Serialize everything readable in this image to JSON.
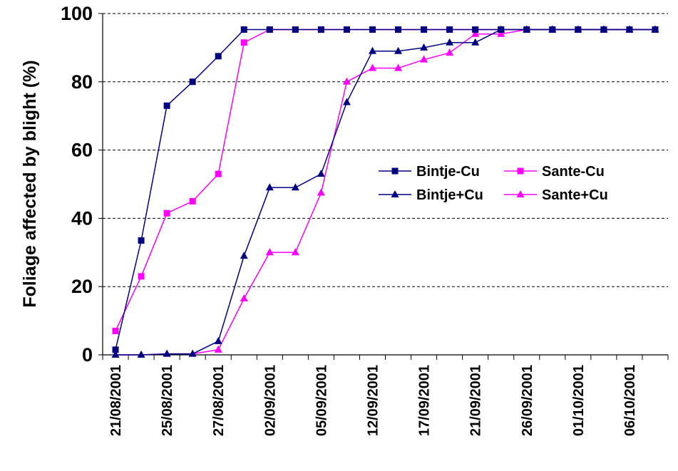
{
  "chart_data": {
    "type": "line",
    "title": "",
    "xlabel": "",
    "ylabel": "Foliage affected by blight (%)",
    "ylim": [
      0,
      100
    ],
    "yticks": [
      0,
      20,
      40,
      60,
      80,
      100
    ],
    "grid": "horizontal-dashed",
    "legend_position": "center-right",
    "categories": [
      "21/08/2001",
      "",
      "25/08/2001",
      "",
      "27/08/2001",
      "",
      "02/09/2001",
      "",
      "05/09/2001",
      "",
      "12/09/2001",
      "",
      "17/09/2001",
      "",
      "21/09/2001",
      "",
      "26/09/2001",
      "",
      "01/10/2001",
      "",
      "06/10/2001",
      ""
    ],
    "series": [
      {
        "name": "Bintje-Cu",
        "color": "#000080",
        "marker": "square",
        "values": [
          1.5,
          33.5,
          73,
          80,
          87.5,
          95.3,
          95.3,
          95.3,
          95.3,
          95.3,
          95.3,
          95.3,
          95.3,
          95.3,
          95.3,
          95.3,
          95.3,
          95.3,
          95.3,
          95.3,
          95.3,
          95.3
        ]
      },
      {
        "name": "Sante-Cu",
        "color": "#FF00FF",
        "marker": "square",
        "values": [
          7,
          23,
          41.5,
          45,
          53,
          91.5,
          95.3,
          95.3,
          95.3,
          95.3,
          95.3,
          95.3,
          95.3,
          95.3,
          95.3,
          95.3,
          95.3,
          95.3,
          95.3,
          95.3,
          95.3,
          95.3
        ]
      },
      {
        "name": "Bintje+Cu",
        "color": "#000080",
        "marker": "triangle",
        "values": [
          0,
          0,
          0.3,
          0.3,
          4,
          29,
          49,
          49,
          53,
          74,
          89,
          89,
          90,
          91.5,
          91.5,
          95.3,
          95.3,
          95.3,
          95.3,
          95.3,
          95.3,
          95.3
        ]
      },
      {
        "name": "Sante+Cu",
        "color": "#FF00FF",
        "marker": "triangle",
        "values": [
          0,
          0,
          0.3,
          0.3,
          1.5,
          16.5,
          30,
          30,
          47.5,
          80,
          84,
          84,
          86.5,
          88.5,
          94,
          94,
          95.3,
          95.3,
          95.3,
          95.3,
          95.3,
          95.3
        ]
      }
    ]
  }
}
